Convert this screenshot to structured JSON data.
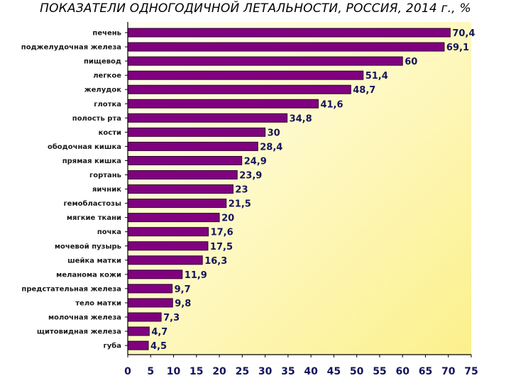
{
  "chart_data": {
    "type": "bar",
    "orientation": "horizontal",
    "title": "ПОКАЗАТЕЛИ ОДНОГОДИЧНОЙ ЛЕТАЛЬНОСТИ, РОССИЯ, 2014 г., %",
    "categories": [
      "печень",
      "поджелудочная железа",
      "пищевод",
      "легкое",
      "желудок",
      "глотка",
      "полость рта",
      "кости",
      "ободочная кишка",
      "прямая кишка",
      "гортань",
      "яичник",
      "гемобластозы",
      "мягкие ткани",
      "почка",
      "мочевой пузырь",
      "шейка матки",
      "меланома кожи",
      "предстательная железа",
      "тело матки",
      "молочная железа",
      "щитовидная железа",
      "губа"
    ],
    "values": [
      70.4,
      69.1,
      60,
      51.4,
      48.7,
      41.6,
      34.8,
      30,
      28.4,
      24.9,
      23.9,
      23,
      21.5,
      20,
      17.6,
      17.5,
      16.3,
      11.9,
      9.7,
      9.8,
      7.3,
      4.7,
      4.5
    ],
    "value_labels": [
      "70,4",
      "69,1",
      "60",
      "51,4",
      "48,7",
      "41,6",
      "34,8",
      "30",
      "28,4",
      "24,9",
      "23,9",
      "23",
      "21,5",
      "20",
      "17,6",
      "17,5",
      "16,3",
      "11,9",
      "9,7",
      "9,8",
      "7,3",
      "4,7",
      "4,5"
    ],
    "xlim": [
      0,
      75
    ],
    "xticks": [
      0,
      5,
      10,
      15,
      20,
      25,
      30,
      35,
      40,
      45,
      50,
      55,
      60,
      65,
      70,
      75
    ],
    "grid": false,
    "colors": {
      "bar_fill": "#800080",
      "bar_edge": "#2a002a",
      "plot_bg_light": "#fffff2",
      "plot_bg_dark": "#fcf08c",
      "value_text": "#14145a"
    }
  }
}
